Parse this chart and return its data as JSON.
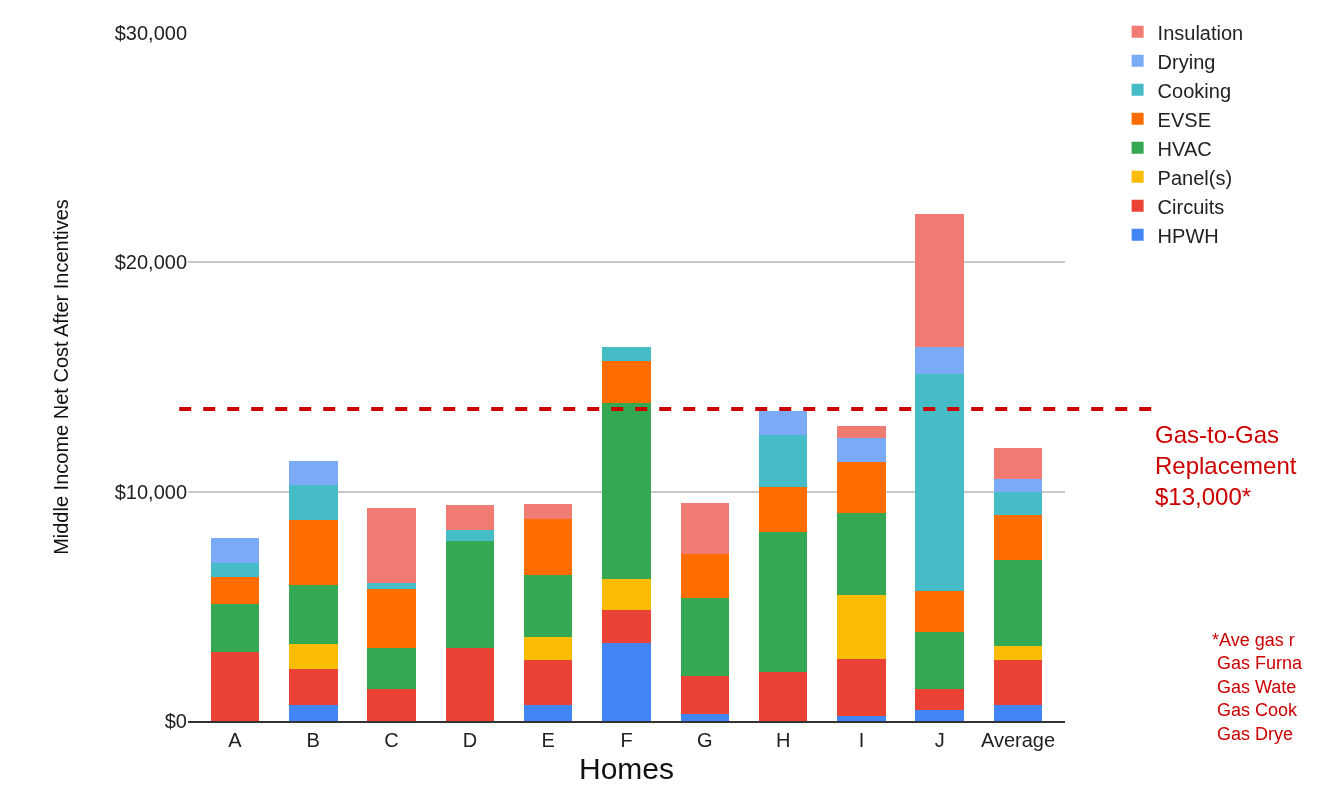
{
  "chart_data": {
    "type": "bar",
    "stacked": true,
    "xlabel": "Homes",
    "ylabel": "Middle Income Net Cost After Incentives",
    "categories": [
      "A",
      "B",
      "C",
      "D",
      "E",
      "F",
      "G",
      "H",
      "I",
      "J",
      "Average"
    ],
    "series": [
      {
        "name": "HPWH",
        "color": "#4285f4",
        "values": [
          0,
          700,
          0,
          0,
          700,
          3400,
          300,
          0,
          200,
          500,
          700
        ]
      },
      {
        "name": "Circuits",
        "color": "#ea4335",
        "values": [
          3000,
          1550,
          1400,
          3200,
          1950,
          1450,
          1650,
          2150,
          2500,
          900,
          1950
        ]
      },
      {
        "name": "Panel(s)",
        "color": "#fbbc04",
        "values": [
          0,
          1100,
          0,
          0,
          1000,
          1350,
          0,
          0,
          2800,
          0,
          600
        ]
      },
      {
        "name": "HVAC",
        "color": "#34a853",
        "values": [
          2100,
          2600,
          1800,
          4650,
          2700,
          7650,
          3400,
          6100,
          3550,
          2500,
          3750
        ]
      },
      {
        "name": "EVSE",
        "color": "#ff6d01",
        "values": [
          1200,
          2800,
          2550,
          0,
          2450,
          1850,
          1950,
          1950,
          2250,
          1750,
          2000
        ]
      },
      {
        "name": "Cooking",
        "color": "#46bdc6",
        "values": [
          600,
          1550,
          250,
          500,
          0,
          600,
          0,
          2250,
          0,
          9500,
          1000
        ]
      },
      {
        "name": "Drying",
        "color": "#7baaf7",
        "values": [
          1100,
          1050,
          0,
          0,
          0,
          0,
          0,
          1050,
          1050,
          1150,
          550
        ]
      },
      {
        "name": "Insulation",
        "color": "#ef7b72",
        "values": [
          0,
          0,
          3300,
          1050,
          650,
          0,
          2200,
          0,
          500,
          5800,
          1350
        ]
      }
    ],
    "ylim": [
      0,
      30000
    ],
    "yticks": [
      {
        "value": 0,
        "label": "$0"
      },
      {
        "value": 10000,
        "label": "$10,000"
      },
      {
        "value": 20000,
        "label": "$20,000"
      },
      {
        "value": 30000,
        "label": "$30,000"
      }
    ],
    "grid": "y",
    "legend": "top right",
    "ref_lines": [
      {
        "axis": "y",
        "value": 13600,
        "label": "Gas-to-Gas\nReplacement\n$13,000*",
        "color": "#cc0000",
        "line_style": "dashed"
      }
    ],
    "annotations": [
      "*Ave gas r\n Gas Furna\n Gas Wate\n Gas Cook\n Gas Drye"
    ]
  }
}
